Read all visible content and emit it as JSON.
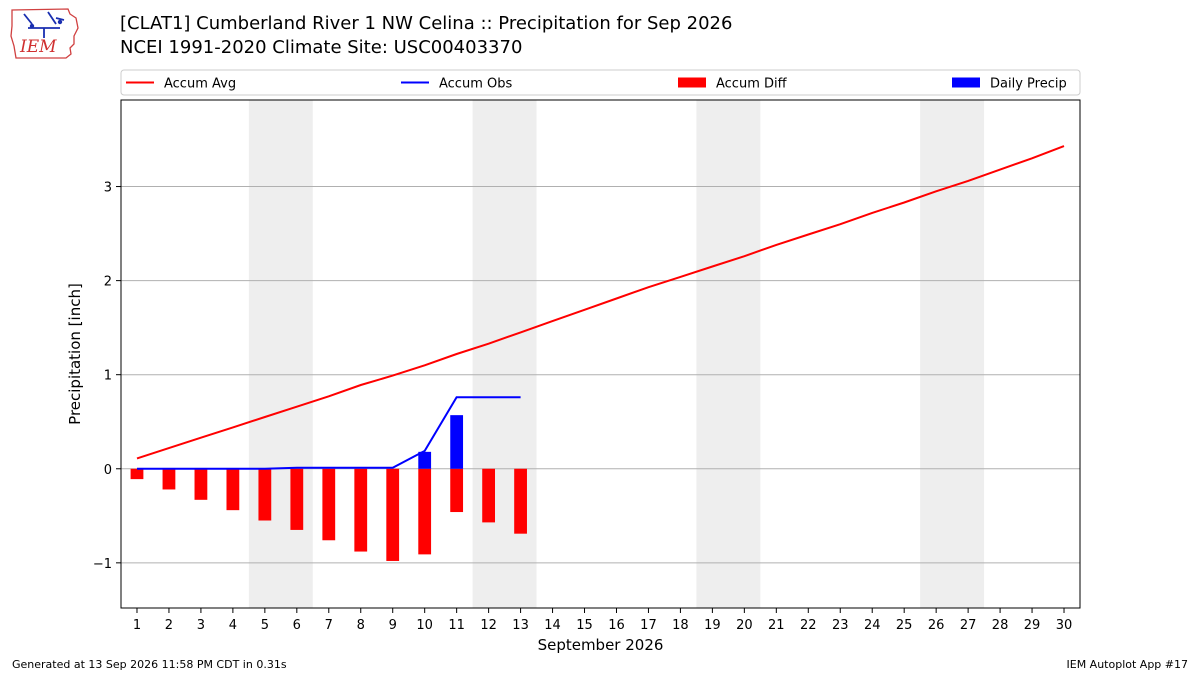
{
  "header": {
    "logo_text": "IEM",
    "title": "[CLAT1] Cumberland River 1 NW Celina :: Precipitation for Sep 2026",
    "subtitle": "NCEI 1991-2020 Climate Site: USC00403370"
  },
  "footer": {
    "generated": "Generated at 13 Sep 2026 11:58 PM CDT in 0.31s",
    "app": "IEM Autoplot App #17"
  },
  "colors": {
    "accum_avg": "#ff0000",
    "accum_obs": "#0000ff",
    "accum_diff": "#ff0000",
    "daily_precip": "#0000ff",
    "weekend_shade": "#eeeeee",
    "grid": "#b0b0b0"
  },
  "chart_data": {
    "type": "bar",
    "xlabel": "September 2026",
    "ylabel": "Precipitation [inch]",
    "xlim": [
      0.5,
      30.5
    ],
    "ylim": [
      -1.48,
      3.92
    ],
    "yticks": [
      -1,
      0,
      1,
      2,
      3
    ],
    "ytick_labels": [
      "−1",
      "0",
      "1",
      "2",
      "3"
    ],
    "grid": "horizontal",
    "legend_position": "top",
    "days": [
      1,
      2,
      3,
      4,
      5,
      6,
      7,
      8,
      9,
      10,
      11,
      12,
      13,
      14,
      15,
      16,
      17,
      18,
      19,
      20,
      21,
      22,
      23,
      24,
      25,
      26,
      27,
      28,
      29,
      30
    ],
    "weekend_ranges": [
      [
        4.5,
        6.5
      ],
      [
        11.5,
        13.5
      ],
      [
        18.5,
        20.5
      ],
      [
        25.5,
        27.5
      ]
    ],
    "series": [
      {
        "name": "Accum Avg",
        "kind": "line",
        "x": [
          1,
          2,
          3,
          4,
          5,
          6,
          7,
          8,
          9,
          10,
          11,
          12,
          13,
          14,
          15,
          16,
          17,
          18,
          19,
          20,
          21,
          22,
          23,
          24,
          25,
          26,
          27,
          28,
          29,
          30
        ],
        "values": [
          0.11,
          0.22,
          0.33,
          0.44,
          0.55,
          0.66,
          0.77,
          0.89,
          0.99,
          1.1,
          1.22,
          1.33,
          1.45,
          1.57,
          1.69,
          1.81,
          1.93,
          2.04,
          2.15,
          2.26,
          2.38,
          2.49,
          2.6,
          2.72,
          2.83,
          2.95,
          3.06,
          3.18,
          3.3,
          3.43
        ]
      },
      {
        "name": "Accum Obs",
        "kind": "line",
        "x": [
          1,
          2,
          3,
          4,
          5,
          6,
          7,
          8,
          9,
          10,
          11,
          12,
          13
        ],
        "values": [
          0,
          0,
          0,
          0,
          0,
          0.01,
          0.01,
          0.01,
          0.01,
          0.19,
          0.76,
          0.76,
          0.76
        ]
      },
      {
        "name": "Accum Diff",
        "kind": "bar",
        "x": [
          1,
          2,
          3,
          4,
          5,
          6,
          7,
          8,
          9,
          10,
          11,
          12,
          13
        ],
        "values": [
          -0.11,
          -0.22,
          -0.33,
          -0.44,
          -0.55,
          -0.65,
          -0.76,
          -0.88,
          -0.98,
          -0.91,
          -0.46,
          -0.57,
          -0.69
        ]
      },
      {
        "name": "Daily Precip",
        "kind": "bar",
        "x": [
          1,
          2,
          3,
          4,
          5,
          6,
          7,
          8,
          9,
          10,
          11,
          12,
          13
        ],
        "values": [
          0,
          0,
          0,
          0,
          0,
          0,
          0,
          0,
          0,
          0.18,
          0.57,
          0,
          0
        ]
      }
    ]
  }
}
